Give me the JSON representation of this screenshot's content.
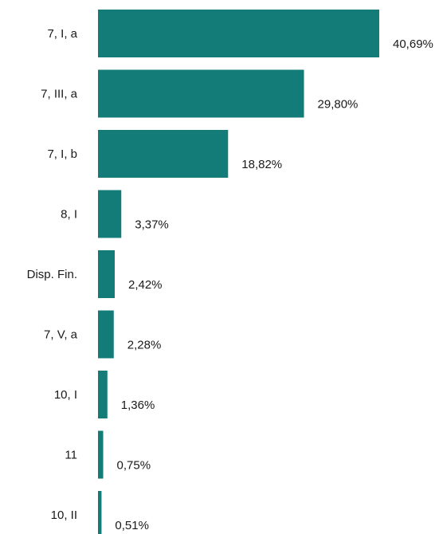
{
  "chart_data": {
    "type": "bar",
    "orientation": "horizontal",
    "categories": [
      "7, I, a",
      "7, III, a",
      "7, I, b",
      "8, I",
      "Disp. Fin.",
      "7, V, a",
      "10, I",
      "11",
      "10, II"
    ],
    "values": [
      40.69,
      29.8,
      18.82,
      3.37,
      2.42,
      2.28,
      1.36,
      0.75,
      0.51
    ],
    "value_labels": [
      "40,69%",
      "29,80%",
      "18,82%",
      "3,37%",
      "2,42%",
      "2,28%",
      "1,36%",
      "0,75%",
      "0,51%"
    ],
    "unit": "%",
    "bar_color": "#137c78",
    "title": "",
    "xlabel": "",
    "ylabel": "",
    "grid": false,
    "legend": "none"
  }
}
